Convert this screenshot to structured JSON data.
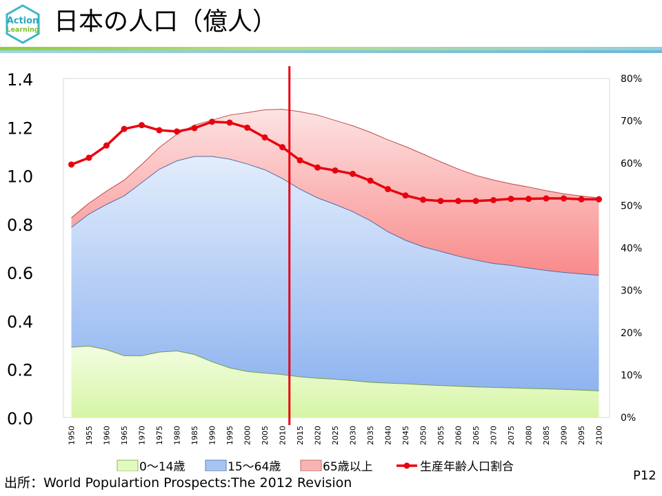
{
  "header": {
    "title": "日本の人口（億人）",
    "logo_line1": "Action",
    "logo_line2": "Learning"
  },
  "footer": {
    "source": "出所：World Populartion Prospects:The 2012 Revision",
    "page": "P12"
  },
  "colors": {
    "young": "#e8fac8",
    "working": "#a8c8f5",
    "elderly": "#f99a9a",
    "ratio_line": "#e8000f",
    "divider": "#e8000f",
    "grid": "#d9d9d9"
  },
  "chart_data": {
    "type": "area",
    "title": "日本の人口（億人）",
    "x": [
      1950,
      1955,
      1960,
      1965,
      1970,
      1975,
      1980,
      1985,
      1990,
      1995,
      2000,
      2005,
      2010,
      2015,
      2020,
      2025,
      2030,
      2035,
      2040,
      2045,
      2050,
      2055,
      2060,
      2065,
      2070,
      2075,
      2080,
      2085,
      2090,
      2095,
      2100
    ],
    "ylim": [
      0,
      1.4
    ],
    "yticks": [
      "0.0",
      "0.2",
      "0.4",
      "0.6",
      "0.8",
      "1.0",
      "1.2",
      "1.4"
    ],
    "y2lim": [
      0,
      80
    ],
    "y2ticks": [
      "0%",
      "10%",
      "20%",
      "30%",
      "40%",
      "50%",
      "60%",
      "70%",
      "80%"
    ],
    "divider_year": 2012,
    "legend_position": "bottom",
    "series": [
      {
        "name": "0〜14歳",
        "kind": "stacked-area",
        "values": [
          0.29,
          0.295,
          0.28,
          0.255,
          0.255,
          0.27,
          0.275,
          0.26,
          0.23,
          0.205,
          0.19,
          0.183,
          0.177,
          0.168,
          0.162,
          0.158,
          0.152,
          0.145,
          0.142,
          0.139,
          0.135,
          0.132,
          0.129,
          0.126,
          0.124,
          0.122,
          0.12,
          0.118,
          0.116,
          0.113,
          0.11
        ]
      },
      {
        "name": "15〜64歳",
        "kind": "stacked-area",
        "values": [
          0.495,
          0.545,
          0.6,
          0.66,
          0.715,
          0.755,
          0.785,
          0.818,
          0.848,
          0.862,
          0.857,
          0.84,
          0.81,
          0.775,
          0.745,
          0.722,
          0.698,
          0.668,
          0.625,
          0.593,
          0.57,
          0.554,
          0.537,
          0.524,
          0.512,
          0.506,
          0.497,
          0.489,
          0.483,
          0.48,
          0.477
        ]
      },
      {
        "name": "65歳以上",
        "kind": "stacked-area",
        "values": [
          0.04,
          0.045,
          0.055,
          0.065,
          0.075,
          0.09,
          0.11,
          0.13,
          0.15,
          0.182,
          0.212,
          0.248,
          0.286,
          0.32,
          0.342,
          0.347,
          0.355,
          0.365,
          0.38,
          0.387,
          0.383,
          0.37,
          0.36,
          0.35,
          0.345,
          0.337,
          0.335,
          0.33,
          0.325,
          0.322,
          0.32
        ]
      },
      {
        "name": "生産年齢人口割合",
        "kind": "line",
        "axis": "right",
        "values": [
          59.7,
          61.3,
          64.2,
          68.1,
          69.0,
          67.8,
          67.5,
          68.3,
          69.8,
          69.6,
          68.4,
          66.1,
          63.8,
          60.7,
          59.0,
          58.3,
          57.5,
          55.9,
          53.9,
          52.4,
          51.4,
          51.1,
          51.1,
          51.1,
          51.3,
          51.6,
          51.6,
          51.7,
          51.7,
          51.5,
          51.5
        ]
      }
    ]
  }
}
